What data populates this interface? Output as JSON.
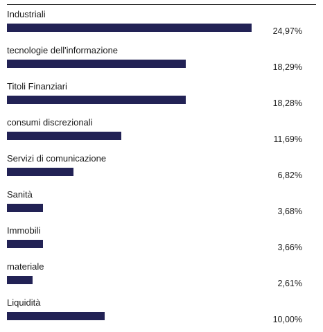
{
  "chart_data": {
    "type": "bar",
    "orientation": "horizontal",
    "categories": [
      "Industriali",
      "tecnologie dell'informazione",
      "Titoli Finanziari",
      "consumi discrezionali",
      "Servizi di comunicazione",
      "Sanità",
      "Immobili",
      "materiale",
      "Liquidità"
    ],
    "values": [
      24.97,
      18.29,
      18.28,
      11.69,
      6.82,
      3.68,
      3.66,
      2.61,
      10.0
    ],
    "value_labels": [
      "24,97%",
      "18,29%",
      "18,28%",
      "11,69%",
      "6,82%",
      "3,68%",
      "3,66%",
      "2,61%",
      "10,00%"
    ],
    "title": "",
    "xlabel": "",
    "ylabel": "",
    "xlim": [
      0,
      25
    ],
    "grid": false,
    "legend": "none",
    "bar_color": "#222255"
  }
}
